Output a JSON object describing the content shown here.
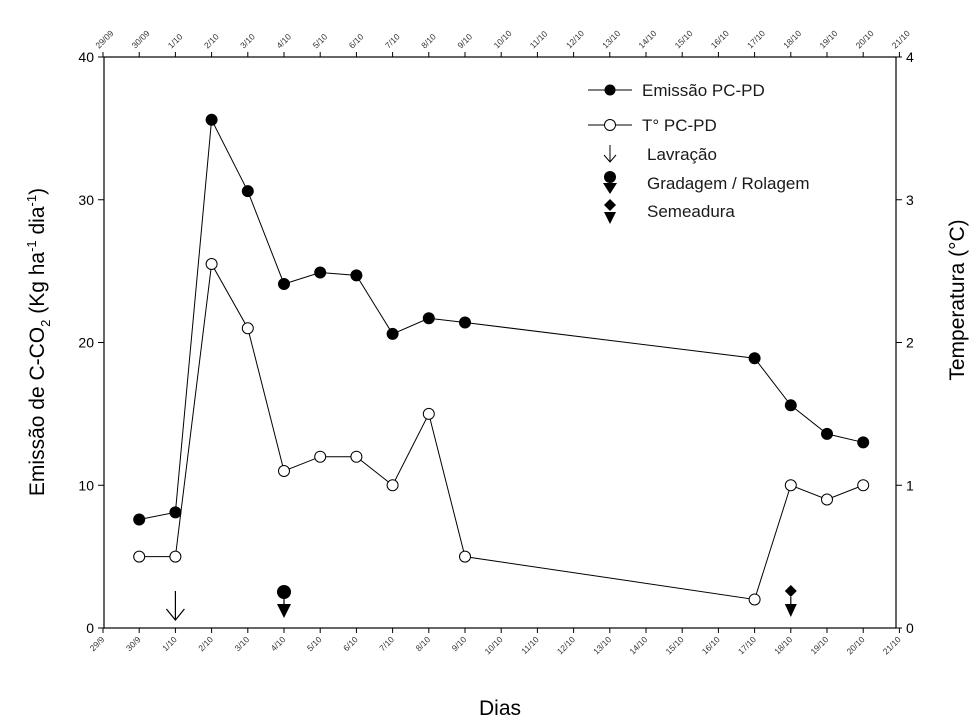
{
  "chart_data": {
    "type": "line",
    "xlabel": "Dias",
    "ylabel_left": "Emissão de C-CO2 (Kg ha-1 dia-1)",
    "ylabel_left_parts": {
      "main": "Emissão  de C-CO",
      "sub": "2",
      "open": " (Kg ha",
      "sup1": "-1",
      "mid": " dia",
      "sup2": "-1",
      "close": ")"
    },
    "ylabel_right": "Temperatura (°C)",
    "ylim_left": [
      0,
      40
    ],
    "ylim_right": [
      0,
      4
    ],
    "yticks_left": [
      "0",
      "10",
      "20",
      "30",
      "40"
    ],
    "yticks_right": [
      "0",
      "1",
      "2",
      "3",
      "4"
    ],
    "x_tick_labels_bottom": [
      "29/9",
      "30/9",
      "1/10",
      "2/10",
      "3/10",
      "4/10",
      "5/10",
      "6/10",
      "7/10",
      "8/10",
      "9/10",
      "10/10",
      "11/10",
      "12/10",
      "13/10",
      "14/10",
      "15/10",
      "16/10",
      "17/10",
      "18/10",
      "19/10",
      "20/10",
      "21/10"
    ],
    "x_tick_labels_top": [
      "29/09",
      "30/09",
      "1/10",
      "2/10",
      "3/10",
      "4/10",
      "5/10",
      "6/10",
      "7/10",
      "8/10",
      "9/10",
      "10/10",
      "11/10",
      "12/10",
      "13/10",
      "14/10",
      "15/10",
      "16/10",
      "17/10",
      "18/10",
      "19/10",
      "20/10",
      "21/10"
    ],
    "series": [
      {
        "name": "Emissão PC-PD",
        "axis": "left",
        "marker": "filled-circle",
        "x": [
          "30/9",
          "1/10",
          "2/10",
          "3/10",
          "4/10",
          "5/10",
          "6/10",
          "7/10",
          "8/10",
          "9/10",
          "17/10",
          "18/10",
          "19/10",
          "20/10"
        ],
        "values": [
          7.6,
          8.1,
          35.6,
          30.6,
          24.1,
          24.9,
          24.7,
          20.6,
          21.7,
          21.4,
          18.9,
          15.6,
          13.6,
          13.0
        ]
      },
      {
        "name": "T° PC-PD",
        "axis": "right",
        "marker": "open-circle",
        "x": [
          "30/9",
          "1/10",
          "2/10",
          "3/10",
          "4/10",
          "5/10",
          "6/10",
          "7/10",
          "8/10",
          "9/10",
          "17/10",
          "18/10",
          "19/10",
          "20/10"
        ],
        "values": [
          0.5,
          0.5,
          2.55,
          2.1,
          1.1,
          1.2,
          1.2,
          1.0,
          1.5,
          0.5,
          0.2,
          1.0,
          0.9,
          1.0
        ]
      }
    ],
    "events": [
      {
        "name": "Lavração",
        "x": "1/10",
        "marker": "arrow"
      },
      {
        "name": "Gradagem / Rolagem",
        "x": "4/10",
        "marker": "circle-arrow"
      },
      {
        "name": "Semeadura",
        "x": "18/10",
        "marker": "diamond-arrow"
      }
    ],
    "legend_position": "top-right",
    "grid": false
  }
}
